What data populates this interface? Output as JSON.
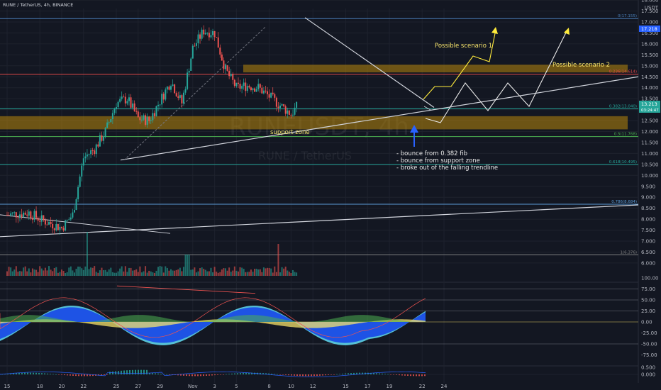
{
  "header": {
    "symbol_line": "RUNE / TetherUS, 4h, BINANCE"
  },
  "watermark": {
    "ticker": "RUNEUSDT, 4h",
    "name": "RUNE / TetherUS"
  },
  "colors": {
    "background": "#131722",
    "up": "#26a69a",
    "down": "#ef5350",
    "zone_fill": "#b8860b",
    "fib_line": "#4a7fb8",
    "trend_line": "#d1d4dc",
    "scenario": "#ffeb3b",
    "annotation_arrow": "#2962ff",
    "wt_blue": "#1e53e5",
    "wt_light": "#5dd3e8",
    "wt_yellow": "#f5e26a",
    "wt_green": "#4caf50"
  },
  "price_axis": {
    "currency": "USDT",
    "ticks": [
      "18.000",
      "17.500",
      "17.000",
      "16.500",
      "16.000",
      "15.500",
      "15.000",
      "14.500",
      "14.000",
      "13.500",
      "13.000",
      "12.500",
      "12.000",
      "11.500",
      "11.000",
      "10.500",
      "10.000",
      "9.500",
      "9.000",
      "8.500",
      "8.000",
      "7.500",
      "7.000",
      "6.500",
      "6.000"
    ],
    "current_price": "17.218",
    "last_price": "13.213",
    "countdown": "03:24:47"
  },
  "fib_levels": [
    {
      "label": "0(17.155)",
      "price": 17.155
    },
    {
      "label": "0.236(14.614)",
      "price": 14.614
    },
    {
      "label": "0.382(13.040)",
      "price": 13.04
    },
    {
      "label": "0.5(11.768)",
      "price": 11.768
    },
    {
      "label": "0.618(10.495)",
      "price": 10.495
    },
    {
      "label": "0.786(8.684)",
      "price": 8.684
    },
    {
      "label": "1(6.376)",
      "price": 6.376
    }
  ],
  "annotations": {
    "support_zone": "support zone",
    "scenario1": "Possible scenario 1",
    "scenario2": "Possible scenario 2",
    "notes": [
      "- bounce from 0.382 fib",
      "- bounce from support zone",
      "- broke out of the falling trendline"
    ]
  },
  "indicator_axis": {
    "ticks": [
      "100.00",
      "75.00",
      "50.00",
      "25.00",
      "0.00",
      "-25.00",
      "-50.00",
      "-75.00"
    ]
  },
  "macd_axis": {
    "ticks": [
      "0.500",
      "0.000"
    ]
  },
  "time_axis": {
    "labels": [
      "15",
      "18",
      "20",
      "22",
      "25",
      "27",
      "29",
      "Nov",
      "3",
      "5",
      "8",
      "10",
      "12",
      "15",
      "17",
      "19",
      "22",
      "24"
    ]
  },
  "chart_data": {
    "type": "candlestick",
    "title": "RUNE / TetherUS, 4h, BINANCE",
    "x_range": [
      "15 Oct",
      "24 Nov"
    ],
    "ylim": [
      5.8,
      18.2
    ],
    "support_zone": [
      12.1,
      12.7
    ],
    "resistance_zone": [
      14.7,
      15.05
    ],
    "key_prices": {
      "swing_high": 17.155,
      "swing_low": 6.376,
      "last_close": 13.213
    },
    "approx_closes": [
      {
        "date": "15 Oct",
        "close": 8.2
      },
      {
        "date": "17 Oct",
        "close": 8.3
      },
      {
        "date": "18 Oct",
        "close": 8.0
      },
      {
        "date": "20 Oct",
        "close": 7.6
      },
      {
        "date": "21 Oct",
        "close": 8.2
      },
      {
        "date": "22 Oct",
        "close": 10.8
      },
      {
        "date": "23 Oct",
        "close": 11.2
      },
      {
        "date": "24 Oct",
        "close": 12.0
      },
      {
        "date": "25 Oct",
        "close": 13.3
      },
      {
        "date": "26 Oct",
        "close": 13.5
      },
      {
        "date": "27 Oct",
        "close": 12.6
      },
      {
        "date": "28 Oct",
        "close": 12.5
      },
      {
        "date": "29 Oct",
        "close": 13.4
      },
      {
        "date": "30 Oct",
        "close": 14.3
      },
      {
        "date": "31 Oct",
        "close": 13.3
      },
      {
        "date": "1 Nov",
        "close": 15.8
      },
      {
        "date": "2 Nov",
        "close": 16.6
      },
      {
        "date": "3 Nov",
        "close": 16.5
      },
      {
        "date": "4 Nov",
        "close": 14.8
      },
      {
        "date": "5 Nov",
        "close": 14.0
      },
      {
        "date": "6 Nov",
        "close": 14.1
      },
      {
        "date": "7 Nov",
        "close": 14.0
      },
      {
        "date": "8 Nov",
        "close": 13.6
      },
      {
        "date": "9 Nov",
        "close": 13.2
      },
      {
        "date": "10 Nov",
        "close": 12.8
      },
      {
        "date": "10 Nov 16:00",
        "close": 13.213
      }
    ]
  }
}
